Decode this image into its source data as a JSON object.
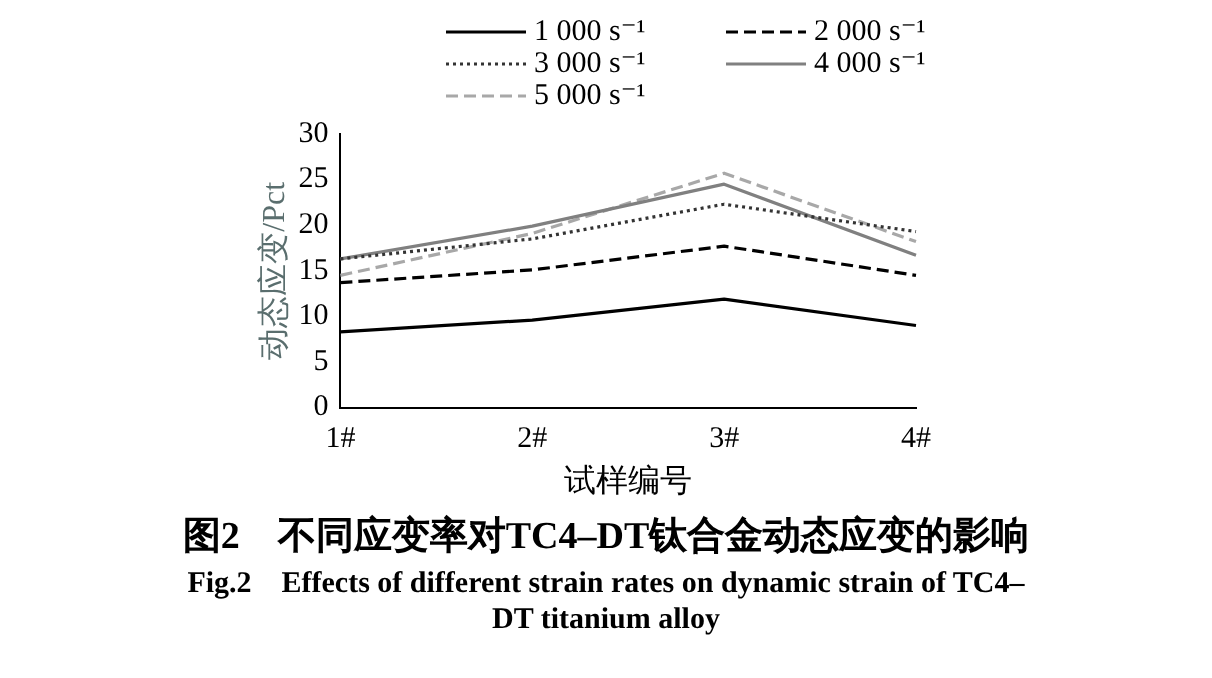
{
  "chart_data": {
    "type": "line",
    "title": "图2　不同应变率对TC4–DT钛合金动态应变的影响",
    "subtitle": "Fig.2　Effects of different strain rates on dynamic strain of TC4–DT titanium alloy",
    "xlabel": "试样编号",
    "ylabel": "动态应变/Pct",
    "categories": [
      "1#",
      "2#",
      "3#",
      "4#"
    ],
    "ylim": [
      0,
      30
    ],
    "yticks": [
      0,
      5,
      10,
      15,
      20,
      25,
      30
    ],
    "grid": false,
    "legend": "top",
    "marker": "none",
    "series": [
      {
        "name": "1 000 s⁻¹",
        "color": "#000000",
        "line_style": "solid",
        "values": [
          8.3,
          9.6,
          11.9,
          9.0
        ]
      },
      {
        "name": "2 000 s⁻¹",
        "color": "#000000",
        "line_style": "dashed",
        "values": [
          13.7,
          15.1,
          17.7,
          14.5
        ]
      },
      {
        "name": "3 000 s⁻¹",
        "color": "#333333",
        "line_style": "dotted",
        "values": [
          16.3,
          18.5,
          22.3,
          19.3
        ]
      },
      {
        "name": "4 000 s⁻¹",
        "color": "#808080",
        "line_style": "solid",
        "values": [
          16.3,
          19.9,
          24.5,
          16.7
        ]
      },
      {
        "name": "5 000 s⁻¹",
        "color": "#a8a8a8",
        "line_style": "dashed",
        "values": [
          14.5,
          19.1,
          25.7,
          18.2
        ]
      }
    ]
  }
}
